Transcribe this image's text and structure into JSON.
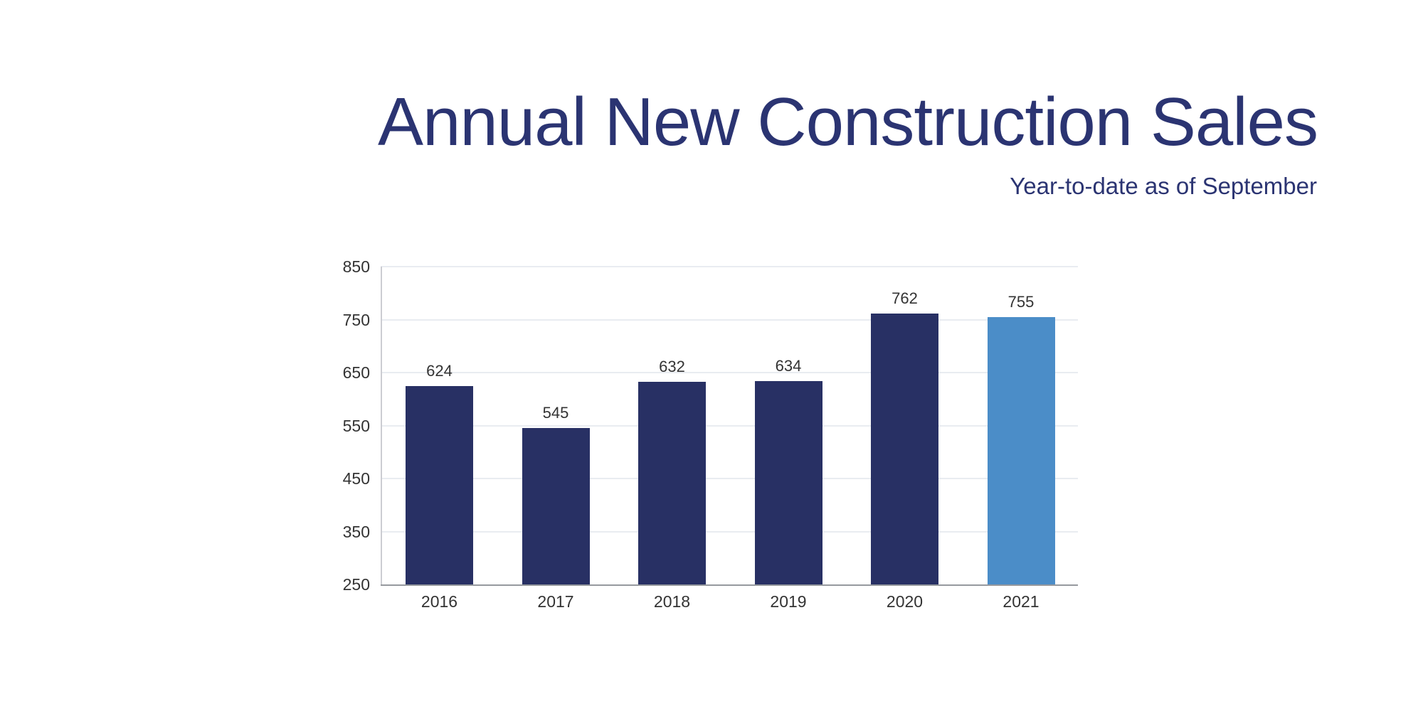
{
  "header": {
    "title": "Annual New Construction Sales",
    "subtitle": "Year-to-date as of September"
  },
  "chart_data": {
    "type": "bar",
    "title": "Annual New Construction Sales",
    "subtitle": "Year-to-date as of September",
    "categories": [
      "2016",
      "2017",
      "2018",
      "2019",
      "2020",
      "2021"
    ],
    "values": [
      624,
      545,
      632,
      634,
      762,
      755
    ],
    "value_labels": [
      "624",
      "545",
      "632",
      "634",
      "762",
      "755"
    ],
    "xlabel": "",
    "ylabel": "",
    "ylim": [
      250,
      850
    ],
    "yticks": [
      250,
      350,
      450,
      550,
      650,
      750,
      850
    ],
    "grid": "horizontal",
    "legend": "none",
    "highlight_category": "2021",
    "colors": {
      "bar_default": "#283064",
      "bar_highlight": "#4b8dc8",
      "title_text": "#2b3472",
      "gridline": "#e9ecf1",
      "y_axis_line": "#cccdd2",
      "x_axis_line": "#96999e",
      "tick_label": "#333333",
      "value_label": "#333333"
    }
  }
}
